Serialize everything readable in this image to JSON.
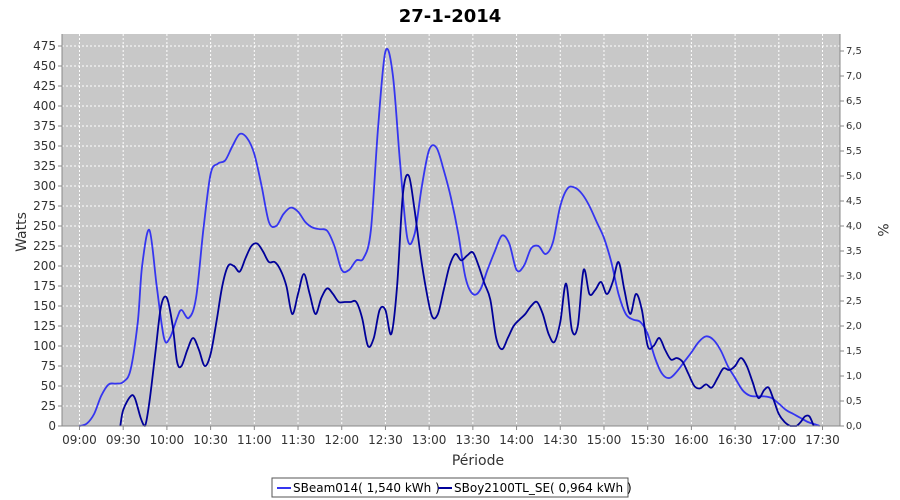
{
  "chart_data": {
    "type": "line",
    "title": "27-1-2014",
    "xlabel": "Période",
    "ylabel": "Watts",
    "y2label": "%",
    "xlim": [
      "09:00",
      "17:30"
    ],
    "ylim": [
      0,
      490
    ],
    "y2lim": [
      0,
      7.84
    ],
    "x_ticks": [
      "09:00",
      "09:30",
      "10:00",
      "10:30",
      "11:00",
      "11:30",
      "12:00",
      "12:30",
      "13:00",
      "13:30",
      "14:00",
      "14:30",
      "15:00",
      "15:30",
      "16:00",
      "16:30",
      "17:00",
      "17:30"
    ],
    "y_ticks": [
      0,
      25,
      50,
      75,
      100,
      125,
      150,
      175,
      200,
      225,
      250,
      275,
      300,
      325,
      350,
      375,
      400,
      425,
      450,
      475
    ],
    "y2_ticks": [
      "0,0",
      "0,5",
      "1,0",
      "1,5",
      "2,0",
      "2,5",
      "3,0",
      "3,5",
      "4,0",
      "4,5",
      "5,0",
      "5,5",
      "6,0",
      "6,5",
      "7,0",
      "7,5"
    ],
    "grid": true,
    "legend_position": "bottom",
    "series": [
      {
        "name": "SBeam014( 1,540 kWh )",
        "color": "#3535f0",
        "points": [
          [
            "09:00",
            0
          ],
          [
            "09:05",
            3
          ],
          [
            "09:10",
            15
          ],
          [
            "09:15",
            38
          ],
          [
            "09:20",
            52
          ],
          [
            "09:25",
            53
          ],
          [
            "09:30",
            55
          ],
          [
            "09:35",
            70
          ],
          [
            "09:40",
            130
          ],
          [
            "09:43",
            200
          ],
          [
            "09:48",
            245
          ],
          [
            "09:53",
            175
          ],
          [
            "09:58",
            110
          ],
          [
            "10:02",
            110
          ],
          [
            "10:07",
            135
          ],
          [
            "10:10",
            145
          ],
          [
            "10:15",
            135
          ],
          [
            "10:20",
            160
          ],
          [
            "10:25",
            245
          ],
          [
            "10:30",
            315
          ],
          [
            "10:35",
            328
          ],
          [
            "10:40",
            332
          ],
          [
            "10:45",
            350
          ],
          [
            "10:50",
            365
          ],
          [
            "10:55",
            360
          ],
          [
            "11:00",
            340
          ],
          [
            "11:05",
            300
          ],
          [
            "11:10",
            255
          ],
          [
            "11:15",
            250
          ],
          [
            "11:20",
            265
          ],
          [
            "11:25",
            273
          ],
          [
            "11:30",
            268
          ],
          [
            "11:35",
            255
          ],
          [
            "11:40",
            248
          ],
          [
            "11:45",
            246
          ],
          [
            "11:50",
            244
          ],
          [
            "11:55",
            225
          ],
          [
            "12:00",
            195
          ],
          [
            "12:05",
            195
          ],
          [
            "12:10",
            207
          ],
          [
            "12:15",
            210
          ],
          [
            "12:20",
            245
          ],
          [
            "12:25",
            375
          ],
          [
            "12:30",
            468
          ],
          [
            "12:35",
            440
          ],
          [
            "12:40",
            330
          ],
          [
            "12:45",
            235
          ],
          [
            "12:50",
            240
          ],
          [
            "12:55",
            300
          ],
          [
            "13:00",
            345
          ],
          [
            "13:05",
            348
          ],
          [
            "13:10",
            320
          ],
          [
            "13:15",
            285
          ],
          [
            "13:20",
            240
          ],
          [
            "13:25",
            185
          ],
          [
            "13:30",
            165
          ],
          [
            "13:35",
            170
          ],
          [
            "13:40",
            195
          ],
          [
            "13:45",
            218
          ],
          [
            "13:50",
            238
          ],
          [
            "13:55",
            228
          ],
          [
            "14:00",
            195
          ],
          [
            "14:05",
            200
          ],
          [
            "14:10",
            222
          ],
          [
            "14:15",
            225
          ],
          [
            "14:20",
            215
          ],
          [
            "14:25",
            230
          ],
          [
            "14:30",
            275
          ],
          [
            "14:35",
            297
          ],
          [
            "14:40",
            298
          ],
          [
            "14:45",
            290
          ],
          [
            "14:50",
            275
          ],
          [
            "14:55",
            255
          ],
          [
            "15:00",
            235
          ],
          [
            "15:05",
            205
          ],
          [
            "15:10",
            165
          ],
          [
            "15:15",
            140
          ],
          [
            "15:20",
            133
          ],
          [
            "15:25",
            130
          ],
          [
            "15:30",
            115
          ],
          [
            "15:35",
            85
          ],
          [
            "15:40",
            65
          ],
          [
            "15:45",
            60
          ],
          [
            "15:50",
            68
          ],
          [
            "15:55",
            80
          ],
          [
            "16:00",
            92
          ],
          [
            "16:05",
            105
          ],
          [
            "16:10",
            112
          ],
          [
            "16:15",
            108
          ],
          [
            "16:20",
            95
          ],
          [
            "16:25",
            75
          ],
          [
            "16:30",
            60
          ],
          [
            "16:35",
            45
          ],
          [
            "16:40",
            38
          ],
          [
            "16:45",
            37
          ],
          [
            "16:50",
            37
          ],
          [
            "16:55",
            35
          ],
          [
            "17:00",
            28
          ],
          [
            "17:05",
            20
          ],
          [
            "17:10",
            15
          ],
          [
            "17:15",
            10
          ],
          [
            "17:20",
            5
          ],
          [
            "17:25",
            2
          ],
          [
            "17:28",
            0
          ]
        ]
      },
      {
        "name": "SBoy2100TL_SE( 0,964 kWh )",
        "color": "#00009a",
        "points": [
          [
            "09:28",
            0
          ],
          [
            "09:30",
            20
          ],
          [
            "09:35",
            37
          ],
          [
            "09:38",
            35
          ],
          [
            "09:42",
            10
          ],
          [
            "09:45",
            0
          ],
          [
            "09:48",
            30
          ],
          [
            "09:52",
            90
          ],
          [
            "09:56",
            150
          ],
          [
            "10:00",
            160
          ],
          [
            "10:04",
            125
          ],
          [
            "10:07",
            80
          ],
          [
            "10:10",
            75
          ],
          [
            "10:14",
            95
          ],
          [
            "10:18",
            110
          ],
          [
            "10:22",
            95
          ],
          [
            "10:26",
            75
          ],
          [
            "10:30",
            90
          ],
          [
            "10:34",
            130
          ],
          [
            "10:38",
            175
          ],
          [
            "10:42",
            200
          ],
          [
            "10:46",
            200
          ],
          [
            "10:50",
            193
          ],
          [
            "10:54",
            210
          ],
          [
            "10:58",
            225
          ],
          [
            "11:02",
            228
          ],
          [
            "11:06",
            218
          ],
          [
            "11:10",
            205
          ],
          [
            "11:14",
            205
          ],
          [
            "11:18",
            195
          ],
          [
            "11:22",
            175
          ],
          [
            "11:26",
            140
          ],
          [
            "11:30",
            165
          ],
          [
            "11:34",
            190
          ],
          [
            "11:38",
            165
          ],
          [
            "11:42",
            140
          ],
          [
            "11:46",
            160
          ],
          [
            "11:50",
            172
          ],
          [
            "11:54",
            165
          ],
          [
            "11:58",
            155
          ],
          [
            "12:02",
            155
          ],
          [
            "12:06",
            155
          ],
          [
            "12:10",
            155
          ],
          [
            "12:14",
            135
          ],
          [
            "12:18",
            100
          ],
          [
            "12:22",
            110
          ],
          [
            "12:26",
            145
          ],
          [
            "12:30",
            145
          ],
          [
            "12:34",
            115
          ],
          [
            "12:38",
            175
          ],
          [
            "12:42",
            290
          ],
          [
            "12:46",
            313
          ],
          [
            "12:50",
            270
          ],
          [
            "12:54",
            215
          ],
          [
            "12:58",
            170
          ],
          [
            "13:02",
            137
          ],
          [
            "13:06",
            140
          ],
          [
            "13:10",
            170
          ],
          [
            "13:14",
            200
          ],
          [
            "13:18",
            215
          ],
          [
            "13:22",
            207
          ],
          [
            "13:26",
            213
          ],
          [
            "13:30",
            217
          ],
          [
            "13:34",
            200
          ],
          [
            "13:38",
            178
          ],
          [
            "13:42",
            158
          ],
          [
            "13:46",
            110
          ],
          [
            "13:50",
            96
          ],
          [
            "13:54",
            110
          ],
          [
            "13:58",
            125
          ],
          [
            "14:02",
            133
          ],
          [
            "14:06",
            140
          ],
          [
            "14:10",
            150
          ],
          [
            "14:14",
            155
          ],
          [
            "14:18",
            140
          ],
          [
            "14:22",
            115
          ],
          [
            "14:26",
            105
          ],
          [
            "14:30",
            130
          ],
          [
            "14:34",
            178
          ],
          [
            "14:38",
            120
          ],
          [
            "14:42",
            125
          ],
          [
            "14:46",
            195
          ],
          [
            "14:50",
            165
          ],
          [
            "14:54",
            170
          ],
          [
            "14:58",
            180
          ],
          [
            "15:02",
            165
          ],
          [
            "15:06",
            180
          ],
          [
            "15:10",
            205
          ],
          [
            "15:14",
            170
          ],
          [
            "15:18",
            140
          ],
          [
            "15:22",
            165
          ],
          [
            "15:26",
            145
          ],
          [
            "15:30",
            100
          ],
          [
            "15:34",
            100
          ],
          [
            "15:38",
            110
          ],
          [
            "15:42",
            95
          ],
          [
            "15:46",
            83
          ],
          [
            "15:50",
            85
          ],
          [
            "15:54",
            80
          ],
          [
            "15:58",
            65
          ],
          [
            "16:02",
            50
          ],
          [
            "16:06",
            47
          ],
          [
            "16:10",
            52
          ],
          [
            "16:14",
            48
          ],
          [
            "16:18",
            60
          ],
          [
            "16:22",
            72
          ],
          [
            "16:26",
            70
          ],
          [
            "16:30",
            75
          ],
          [
            "16:34",
            85
          ],
          [
            "16:38",
            75
          ],
          [
            "16:42",
            55
          ],
          [
            "16:46",
            35
          ],
          [
            "16:50",
            45
          ],
          [
            "16:53",
            48
          ],
          [
            "16:56",
            35
          ],
          [
            "17:00",
            15
          ],
          [
            "17:04",
            5
          ],
          [
            "17:08",
            0
          ],
          [
            "17:12",
            0
          ],
          [
            "17:15",
            5
          ],
          [
            "17:18",
            12
          ],
          [
            "17:21",
            12
          ],
          [
            "17:24",
            0
          ]
        ]
      }
    ]
  }
}
